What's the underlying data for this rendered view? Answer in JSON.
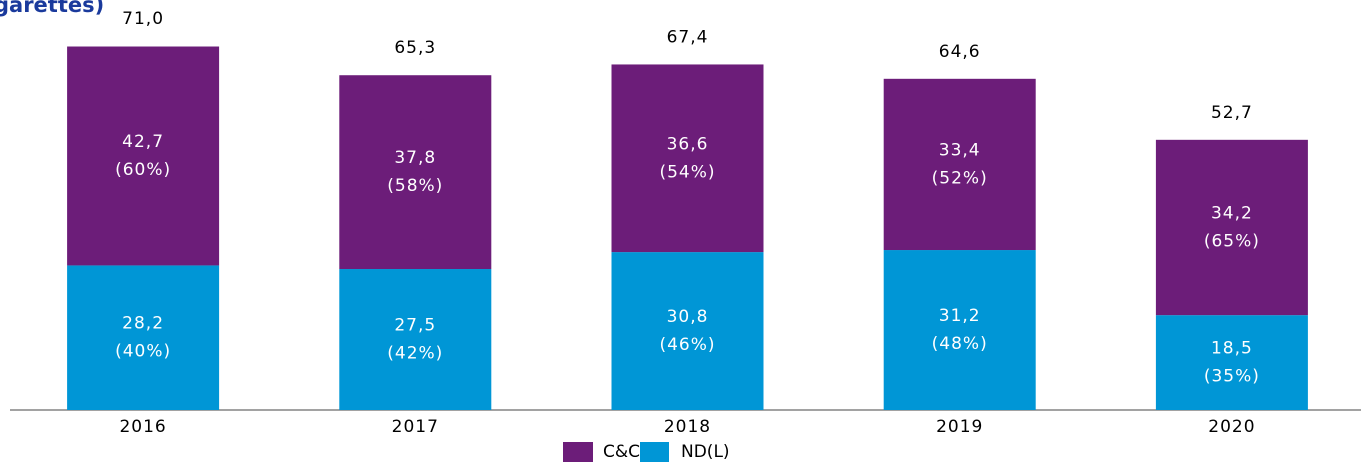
{
  "chart_data": {
    "type": "stacked_bar",
    "title": "garettes)",
    "categories": [
      "2016",
      "2017",
      "2018",
      "2019",
      "2020"
    ],
    "series": [
      {
        "name": "ND(L)",
        "color": "#0096d6",
        "values": [
          28.2,
          27.5,
          30.8,
          31.2,
          18.5
        ],
        "value_labels": [
          "28,2",
          "27,5",
          "30,8",
          "31,2",
          "18,5"
        ],
        "shares": [
          40,
          42,
          46,
          48,
          35
        ],
        "share_labels": [
          "(40%)",
          "(42%)",
          "(46%)",
          "(48%)",
          "(35%)"
        ]
      },
      {
        "name": "C&C",
        "color": "#6c1d79",
        "values": [
          42.7,
          37.8,
          36.6,
          33.4,
          34.2
        ],
        "value_labels": [
          "42,7",
          "37,8",
          "36,6",
          "33,4",
          "34,2"
        ],
        "shares": [
          60,
          58,
          54,
          52,
          65
        ],
        "share_labels": [
          "(60%)",
          "(58%)",
          "(54%)",
          "(52%)",
          "(65%)"
        ]
      }
    ],
    "totals": [
      71.0,
      65.3,
      67.4,
      64.6,
      52.7
    ],
    "total_labels": [
      "71,0",
      "65,3",
      "67,4",
      "64,6",
      "52,7"
    ],
    "ylim": [
      0,
      71
    ]
  }
}
